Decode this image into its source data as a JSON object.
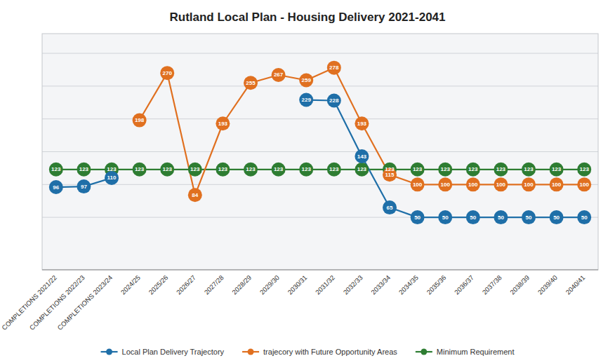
{
  "chart_data": {
    "type": "line",
    "title": "Rutland Local Plan - Housing Delivery 2021-2041",
    "categories": [
      "COMPLETIONS 2021/22",
      "COMPLETIONS 2022/23",
      "COMPLETIONS 2023/24",
      "2024/25",
      "2025/26",
      "2026/27",
      "2027/28",
      "2028/29",
      "2029/30",
      "2030/31",
      "2031/32",
      "2032/33",
      "2033/34",
      "2034/35",
      "2035/36",
      "2036/37",
      "2037/38",
      "2038/39",
      "2039/40",
      "2040/41"
    ],
    "series": [
      {
        "name": "Local Plan Delivery Trajectory",
        "color": "#1f6fa8",
        "marker": "circle",
        "values": [
          96,
          97,
          110,
          null,
          null,
          null,
          null,
          null,
          null,
          229,
          228,
          143,
          65,
          50,
          50,
          50,
          50,
          50,
          50,
          50
        ]
      },
      {
        "name": "trajecory with Future Opportunity Areas",
        "color": "#e07020",
        "marker": "circle",
        "values": [
          null,
          null,
          null,
          198,
          270,
          84,
          193,
          255,
          267,
          259,
          278,
          193,
          115,
          100,
          100,
          100,
          100,
          100,
          100,
          100
        ]
      },
      {
        "name": "Minimum Requirement",
        "color": "#2e7d32",
        "marker": "circle",
        "values": [
          123,
          123,
          123,
          123,
          123,
          123,
          123,
          123,
          123,
          123,
          123,
          123,
          123,
          123,
          123,
          123,
          123,
          123,
          123,
          123
        ]
      }
    ],
    "ylim": [
      -30,
      330
    ],
    "yticks": [
      50,
      100,
      150,
      200,
      250,
      300
    ],
    "grid": true,
    "legend": "bottom",
    "data_labels": true,
    "tick_labels": "x"
  }
}
